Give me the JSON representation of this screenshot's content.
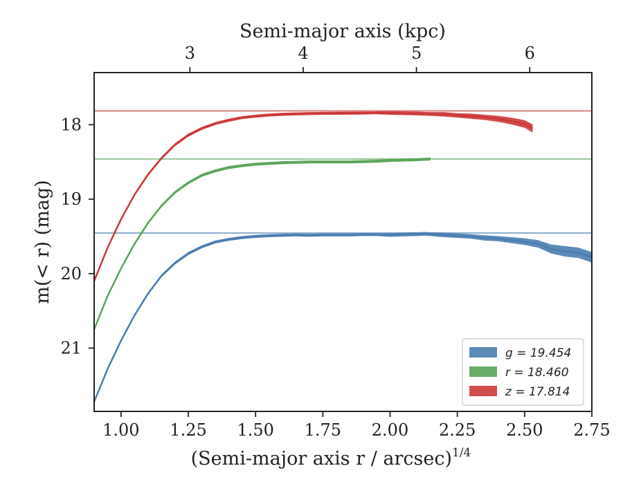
{
  "chart_data": {
    "type": "line",
    "xlabel_bottom": "(Semi-major axis r / arcsec)",
    "xlabel_bottom_sup": "1/4",
    "xlabel_top": "Semi-major axis (kpc)",
    "ylabel": "m(< r) (mag)",
    "xlim": [
      0.9,
      2.75
    ],
    "ylim": [
      21.85,
      17.3
    ],
    "y_inverted": true,
    "x_ticks": [
      1.0,
      1.25,
      1.5,
      1.75,
      2.0,
      2.25,
      2.5,
      2.75
    ],
    "x_tick_labels": [
      "1.00",
      "1.25",
      "1.50",
      "1.75",
      "2.00",
      "2.25",
      "2.50",
      "2.75"
    ],
    "y_ticks": [
      18,
      19,
      20,
      21
    ],
    "y_tick_labels": [
      "18",
      "19",
      "20",
      "21"
    ],
    "top_ticks_kpc": [
      3,
      4,
      5,
      6
    ],
    "top_tick_labels": [
      "3",
      "4",
      "5",
      "6"
    ],
    "top_tick_positions_data": [
      1.256,
      1.677,
      2.098,
      2.519
    ],
    "legend_position": "lower-right",
    "grid": false,
    "series": [
      {
        "name": "g = 19.454",
        "legend_label": "g = 19.454",
        "asymptote": 19.454,
        "color": "#4a7eb0",
        "x": [
          0.9,
          0.95,
          1.0,
          1.05,
          1.1,
          1.15,
          1.2,
          1.25,
          1.3,
          1.35,
          1.4,
          1.45,
          1.5,
          1.55,
          1.6,
          1.65,
          1.7,
          1.75,
          1.8,
          1.85,
          1.9,
          1.95,
          2.0,
          2.05,
          2.1,
          2.13,
          2.15,
          2.2,
          2.25,
          2.3,
          2.35,
          2.4,
          2.45,
          2.5,
          2.55,
          2.6,
          2.65,
          2.7,
          2.75
        ],
        "y": [
          21.72,
          21.28,
          20.9,
          20.56,
          20.27,
          20.03,
          19.86,
          19.73,
          19.64,
          19.575,
          19.54,
          19.515,
          19.5,
          19.49,
          19.485,
          19.48,
          19.485,
          19.48,
          19.48,
          19.48,
          19.475,
          19.475,
          19.48,
          19.475,
          19.47,
          19.465,
          19.47,
          19.48,
          19.49,
          19.5,
          19.52,
          19.53,
          19.55,
          19.57,
          19.6,
          19.67,
          19.7,
          19.72,
          19.78
        ],
        "width": [
          0.02,
          0.02,
          0.02,
          0.02,
          0.02,
          0.02,
          0.02,
          0.02,
          0.02,
          0.02,
          0.02,
          0.02,
          0.02,
          0.02,
          0.02,
          0.02,
          0.02,
          0.02,
          0.02,
          0.02,
          0.02,
          0.02,
          0.025,
          0.025,
          0.025,
          0.025,
          0.025,
          0.03,
          0.03,
          0.03,
          0.035,
          0.035,
          0.04,
          0.045,
          0.05,
          0.06,
          0.07,
          0.07,
          0.07
        ]
      },
      {
        "name": "r = 18.460",
        "legend_label": "r = 18.460",
        "asymptote": 18.46,
        "color": "#5aa55a",
        "x": [
          0.9,
          0.95,
          1.0,
          1.05,
          1.1,
          1.15,
          1.2,
          1.25,
          1.3,
          1.35,
          1.4,
          1.45,
          1.5,
          1.55,
          1.6,
          1.65,
          1.7,
          1.75,
          1.8,
          1.85,
          1.9,
          1.95,
          2.0,
          2.05,
          2.1,
          2.15
        ],
        "y": [
          20.75,
          20.3,
          19.93,
          19.6,
          19.32,
          19.09,
          18.91,
          18.78,
          18.68,
          18.62,
          18.575,
          18.55,
          18.53,
          18.52,
          18.51,
          18.505,
          18.5,
          18.5,
          18.5,
          18.5,
          18.495,
          18.49,
          18.48,
          18.475,
          18.47,
          18.46
        ],
        "width": [
          0.02,
          0.02,
          0.02,
          0.02,
          0.02,
          0.02,
          0.02,
          0.02,
          0.02,
          0.02,
          0.02,
          0.02,
          0.02,
          0.02,
          0.02,
          0.02,
          0.02,
          0.02,
          0.02,
          0.02,
          0.02,
          0.02,
          0.02,
          0.02,
          0.02,
          0.02
        ]
      },
      {
        "name": "z = 17.814",
        "legend_label": "z = 17.814",
        "asymptote": 17.814,
        "color": "#cc3838",
        "x": [
          0.9,
          0.95,
          1.0,
          1.05,
          1.1,
          1.15,
          1.2,
          1.25,
          1.3,
          1.35,
          1.4,
          1.45,
          1.5,
          1.55,
          1.6,
          1.65,
          1.7,
          1.75,
          1.8,
          1.85,
          1.9,
          1.95,
          2.0,
          2.05,
          2.1,
          2.15,
          2.2,
          2.25,
          2.3,
          2.35,
          2.4,
          2.45,
          2.5,
          2.53
        ],
        "y": [
          20.1,
          19.65,
          19.27,
          18.94,
          18.67,
          18.45,
          18.27,
          18.14,
          18.05,
          17.985,
          17.94,
          17.905,
          17.885,
          17.87,
          17.86,
          17.855,
          17.85,
          17.848,
          17.846,
          17.845,
          17.843,
          17.84,
          17.842,
          17.845,
          17.85,
          17.855,
          17.86,
          17.875,
          17.885,
          17.9,
          17.92,
          17.95,
          17.99,
          18.05
        ],
        "width": [
          0.02,
          0.02,
          0.02,
          0.02,
          0.02,
          0.02,
          0.02,
          0.02,
          0.02,
          0.02,
          0.02,
          0.02,
          0.02,
          0.02,
          0.02,
          0.02,
          0.02,
          0.02,
          0.02,
          0.02,
          0.02,
          0.02,
          0.025,
          0.025,
          0.025,
          0.025,
          0.03,
          0.03,
          0.035,
          0.035,
          0.04,
          0.045,
          0.05,
          0.055
        ]
      }
    ]
  }
}
